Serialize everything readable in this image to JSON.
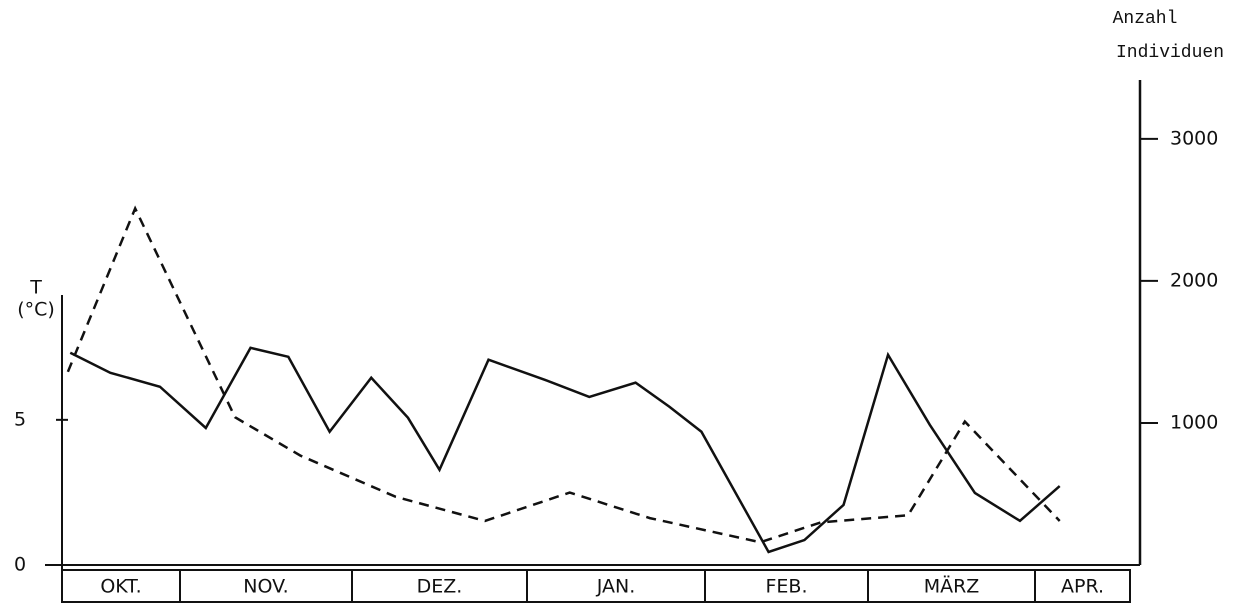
{
  "chart_data": {
    "type": "line",
    "ylabel_lines": [
      "T",
      "(°C)"
    ],
    "y2label_lines": [
      "Anzahl",
      "Individuen"
    ],
    "categories": [
      "OKT.",
      "NOV.",
      "DEZ.",
      "JAN.",
      "FEB.",
      "MÄRZ",
      "APR."
    ],
    "ylim": [
      0,
      9.3
    ],
    "yticks": [
      0,
      5
    ],
    "y2lim": [
      0,
      3400
    ],
    "y2ticks": [
      1000,
      2000,
      3000
    ],
    "series": [
      {
        "color": "#111",
        "dash": false,
        "x": [
          0.07,
          0.41,
          0.83,
          1.15,
          1.41,
          1.63,
          1.87,
          2.11,
          2.32,
          2.5,
          2.78,
          3.1,
          3.35,
          3.61,
          3.8,
          3.98,
          4.39,
          4.61,
          4.85,
          5.12,
          5.37,
          5.64,
          5.91,
          6.26
        ],
        "values": [
          7.31,
          6.62,
          6.14,
          4.72,
          7.48,
          7.17,
          4.59,
          6.45,
          5.07,
          3.28,
          7.07,
          6.38,
          5.79,
          6.28,
          5.45,
          4.59,
          0.45,
          0.86,
          2.07,
          7.24,
          4.83,
          2.48,
          1.52,
          2.72
        ]
      },
      {
        "color": "#111",
        "dash": true,
        "axis": "y2",
        "x": [
          0.05,
          0.62,
          1.32,
          1.7,
          2.25,
          2.76,
          3.24,
          3.69,
          4.34,
          4.71,
          5.24,
          5.58,
          6.26
        ],
        "values": [
          1360,
          2510,
          1040,
          770,
          480,
          310,
          510,
          330,
          160,
          300,
          350,
          1010,
          310
        ]
      }
    ]
  }
}
